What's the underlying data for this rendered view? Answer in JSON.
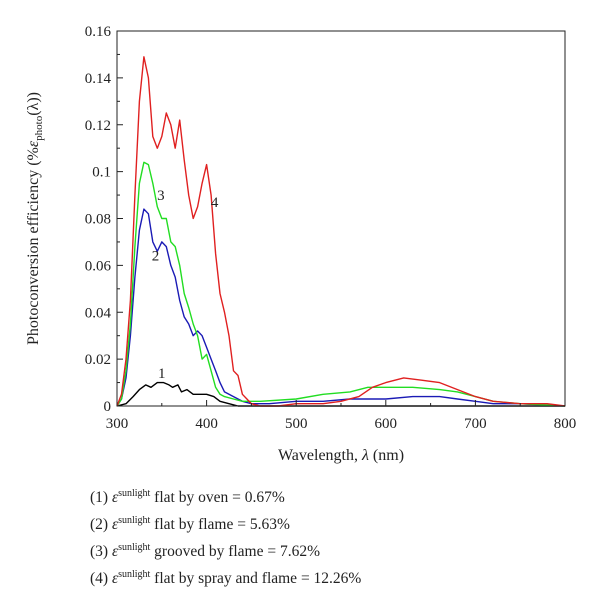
{
  "chart_data": {
    "type": "line",
    "title": "",
    "xlabel_prefix": "Wavelength, ",
    "xlabel_symbol": "λ",
    "xlabel_suffix": " (nm)",
    "ylabel_prefix": "Photoconversion efficiency (%",
    "ylabel_symbol": "ε",
    "ylabel_sub": "photo",
    "ylabel_suffix": "(λ))",
    "xlim": [
      300,
      800
    ],
    "ylim": [
      0,
      0.16
    ],
    "xticks": [
      300,
      400,
      500,
      600,
      700,
      800
    ],
    "yticks": [
      0,
      0.02,
      0.04,
      0.06,
      0.08,
      0.1,
      0.12,
      0.14,
      0.16
    ],
    "ytick_labels": [
      "0",
      "0.02",
      "0.04",
      "0.06",
      "0.08",
      "0.1",
      "0.12",
      "0.14",
      "0.16"
    ],
    "grid": false,
    "series": [
      {
        "name": "1",
        "color": "#000000",
        "label_at": [
          350,
          0.012
        ],
        "points": [
          [
            300,
            0
          ],
          [
            310,
            0.001
          ],
          [
            318,
            0.004
          ],
          [
            325,
            0.007
          ],
          [
            332,
            0.009
          ],
          [
            338,
            0.008
          ],
          [
            345,
            0.01
          ],
          [
            352,
            0.01
          ],
          [
            358,
            0.009
          ],
          [
            362,
            0.008
          ],
          [
            368,
            0.009
          ],
          [
            372,
            0.006
          ],
          [
            378,
            0.007
          ],
          [
            385,
            0.005
          ],
          [
            392,
            0.005
          ],
          [
            400,
            0.005
          ],
          [
            408,
            0.004
          ],
          [
            415,
            0.002
          ],
          [
            425,
            0.001
          ],
          [
            435,
            0
          ],
          [
            450,
            0
          ],
          [
            500,
            0
          ],
          [
            550,
            0
          ],
          [
            600,
            0
          ],
          [
            650,
            0
          ],
          [
            700,
            0
          ],
          [
            750,
            0
          ],
          [
            800,
            0
          ]
        ]
      },
      {
        "name": "2",
        "color": "#1a1ab5",
        "label_at": [
          343,
          0.062
        ],
        "points": [
          [
            300,
            0
          ],
          [
            305,
            0.003
          ],
          [
            310,
            0.012
          ],
          [
            315,
            0.03
          ],
          [
            320,
            0.055
          ],
          [
            325,
            0.075
          ],
          [
            330,
            0.084
          ],
          [
            335,
            0.082
          ],
          [
            340,
            0.07
          ],
          [
            345,
            0.066
          ],
          [
            350,
            0.07
          ],
          [
            355,
            0.068
          ],
          [
            360,
            0.06
          ],
          [
            365,
            0.055
          ],
          [
            370,
            0.045
          ],
          [
            375,
            0.038
          ],
          [
            380,
            0.035
          ],
          [
            385,
            0.03
          ],
          [
            390,
            0.032
          ],
          [
            395,
            0.03
          ],
          [
            400,
            0.025
          ],
          [
            405,
            0.02
          ],
          [
            410,
            0.015
          ],
          [
            415,
            0.01
          ],
          [
            420,
            0.006
          ],
          [
            430,
            0.004
          ],
          [
            440,
            0.002
          ],
          [
            450,
            0.001
          ],
          [
            470,
            0.001
          ],
          [
            500,
            0.002
          ],
          [
            530,
            0.002
          ],
          [
            560,
            0.003
          ],
          [
            600,
            0.003
          ],
          [
            630,
            0.004
          ],
          [
            660,
            0.004
          ],
          [
            680,
            0.003
          ],
          [
            700,
            0.002
          ],
          [
            720,
            0.001
          ],
          [
            750,
            0.001
          ],
          [
            800,
            0
          ]
        ]
      },
      {
        "name": "3",
        "color": "#22dd22",
        "label_at": [
          349,
          0.088
        ],
        "points": [
          [
            300,
            0
          ],
          [
            305,
            0.003
          ],
          [
            310,
            0.015
          ],
          [
            315,
            0.035
          ],
          [
            320,
            0.068
          ],
          [
            325,
            0.095
          ],
          [
            330,
            0.104
          ],
          [
            335,
            0.103
          ],
          [
            340,
            0.095
          ],
          [
            345,
            0.085
          ],
          [
            350,
            0.08
          ],
          [
            355,
            0.08
          ],
          [
            360,
            0.07
          ],
          [
            365,
            0.068
          ],
          [
            370,
            0.06
          ],
          [
            375,
            0.048
          ],
          [
            380,
            0.042
          ],
          [
            385,
            0.035
          ],
          [
            390,
            0.03
          ],
          [
            395,
            0.02
          ],
          [
            400,
            0.022
          ],
          [
            405,
            0.015
          ],
          [
            410,
            0.008
          ],
          [
            415,
            0.005
          ],
          [
            420,
            0.004
          ],
          [
            430,
            0.003
          ],
          [
            440,
            0.002
          ],
          [
            460,
            0.002
          ],
          [
            500,
            0.003
          ],
          [
            530,
            0.005
          ],
          [
            560,
            0.006
          ],
          [
            580,
            0.008
          ],
          [
            600,
            0.008
          ],
          [
            630,
            0.008
          ],
          [
            660,
            0.007
          ],
          [
            680,
            0.006
          ],
          [
            700,
            0.004
          ],
          [
            720,
            0.002
          ],
          [
            750,
            0.001
          ],
          [
            800,
            0
          ]
        ]
      },
      {
        "name": "4",
        "color": "#e02020",
        "label_at": [
          409,
          0.085
        ],
        "points": [
          [
            300,
            0
          ],
          [
            305,
            0.005
          ],
          [
            310,
            0.02
          ],
          [
            315,
            0.045
          ],
          [
            320,
            0.09
          ],
          [
            325,
            0.13
          ],
          [
            330,
            0.149
          ],
          [
            335,
            0.14
          ],
          [
            340,
            0.115
          ],
          [
            345,
            0.11
          ],
          [
            350,
            0.115
          ],
          [
            355,
            0.125
          ],
          [
            360,
            0.12
          ],
          [
            365,
            0.11
          ],
          [
            370,
            0.122
          ],
          [
            375,
            0.105
          ],
          [
            380,
            0.09
          ],
          [
            385,
            0.08
          ],
          [
            390,
            0.085
          ],
          [
            395,
            0.095
          ],
          [
            400,
            0.103
          ],
          [
            405,
            0.09
          ],
          [
            410,
            0.065
          ],
          [
            415,
            0.048
          ],
          [
            420,
            0.04
          ],
          [
            425,
            0.03
          ],
          [
            430,
            0.015
          ],
          [
            435,
            0.013
          ],
          [
            440,
            0.005
          ],
          [
            445,
            0.003
          ],
          [
            450,
            0.001
          ],
          [
            460,
            0
          ],
          [
            480,
            0
          ],
          [
            500,
            0.001
          ],
          [
            530,
            0.001
          ],
          [
            550,
            0.002
          ],
          [
            570,
            0.004
          ],
          [
            585,
            0.008
          ],
          [
            600,
            0.01
          ],
          [
            620,
            0.012
          ],
          [
            640,
            0.011
          ],
          [
            660,
            0.01
          ],
          [
            680,
            0.007
          ],
          [
            700,
            0.004
          ],
          [
            720,
            0.002
          ],
          [
            750,
            0.001
          ],
          [
            780,
            0.001
          ],
          [
            800,
            0
          ]
        ]
      }
    ]
  },
  "legend": [
    {
      "num": "(1) ",
      "eps": "ε",
      "sup": "sunlight",
      "text": " flat by oven = 0.67%"
    },
    {
      "num": "(2) ",
      "eps": "ε",
      "sup": "sunlight",
      "text": " flat by flame = 5.63%"
    },
    {
      "num": "(3) ",
      "eps": "ε",
      "sup": "sunlight",
      "text": " grooved by flame = 7.62%"
    },
    {
      "num": "(4) ",
      "eps": "ε",
      "sup": "sunlight",
      "text": " flat by spray and flame = 12.26%"
    }
  ]
}
